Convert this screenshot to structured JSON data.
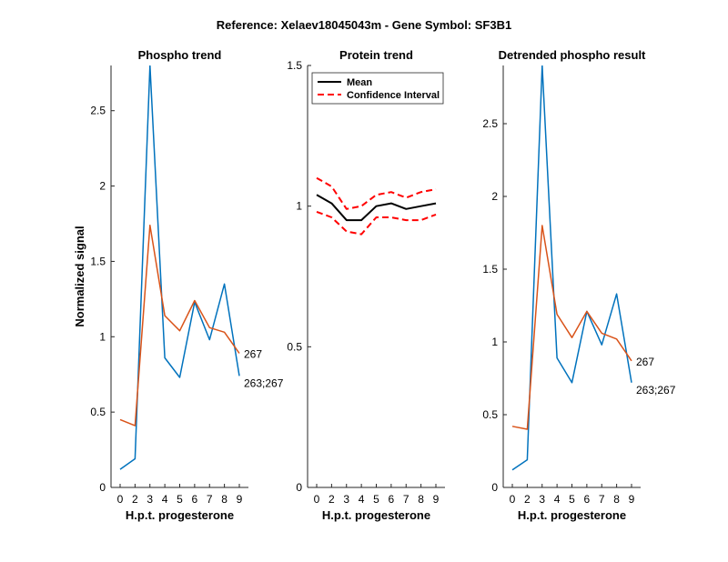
{
  "figure_title": "Reference:  Xelaev18045043m - Gene Symbol:  SF3B1",
  "colors": {
    "blue": "#0072BD",
    "orange": "#D95319",
    "black": "#000000",
    "red": "#FF0000"
  },
  "chart_data": [
    {
      "type": "line",
      "title": "Phospho trend",
      "xlabel": "H.p.t. progesterone",
      "ylabel": "Normalized signal",
      "x_ticks": [
        "0",
        "2",
        "3",
        "4",
        "5",
        "6",
        "7",
        "8",
        "9"
      ],
      "ylim": [
        0,
        2.8
      ],
      "y_ticks": [
        0,
        0.5,
        1,
        1.5,
        2,
        2.5
      ],
      "y_tick_labels": [
        "0",
        "0.5",
        "1",
        "1.5",
        "2",
        "2.5"
      ],
      "series": [
        {
          "name": "263;267",
          "color": "#0072BD",
          "dash": "none",
          "values": [
            0.12,
            0.19,
            2.8,
            0.86,
            0.73,
            1.23,
            0.98,
            1.35,
            0.74
          ]
        },
        {
          "name": "267",
          "color": "#D95319",
          "dash": "none",
          "values": [
            0.45,
            0.41,
            1.74,
            1.14,
            1.04,
            1.24,
            1.06,
            1.03,
            0.89
          ]
        }
      ]
    },
    {
      "type": "line",
      "title": "Protein trend",
      "xlabel": "H.p.t. progesterone",
      "ylabel": "",
      "x_ticks": [
        "0",
        "2",
        "3",
        "4",
        "5",
        "6",
        "7",
        "8",
        "9"
      ],
      "ylim": [
        0,
        1.5
      ],
      "y_ticks": [
        0,
        0.5,
        1,
        1.5
      ],
      "y_tick_labels": [
        "0",
        "0.5",
        "1",
        "1.5"
      ],
      "legend_position": "top-right",
      "legend": [
        {
          "label": "Mean",
          "color": "#000000",
          "dash": "none"
        },
        {
          "label": "Confidence Interval",
          "color": "#FF0000",
          "dash": "7,4"
        }
      ],
      "series": [
        {
          "name": "Mean",
          "color": "#000000",
          "dash": "none",
          "values": [
            1.04,
            1.01,
            0.95,
            0.95,
            1.0,
            1.01,
            0.99,
            1.0,
            1.01
          ]
        },
        {
          "name": "Confidence Interval",
          "color": "#FF0000",
          "dash": "7,4",
          "values": [
            1.1,
            1.07,
            0.99,
            1.0,
            1.04,
            1.05,
            1.03,
            1.05,
            1.06
          ]
        },
        {
          "name": "Confidence Interval",
          "color": "#FF0000",
          "dash": "7,4",
          "values": [
            0.98,
            0.96,
            0.91,
            0.9,
            0.96,
            0.96,
            0.95,
            0.95,
            0.97
          ]
        }
      ]
    },
    {
      "type": "line",
      "title": "Detrended phospho result",
      "xlabel": "H.p.t. progesterone",
      "ylabel": "",
      "x_ticks": [
        "0",
        "2",
        "3",
        "4",
        "5",
        "6",
        "7",
        "8",
        "9"
      ],
      "ylim": [
        0,
        2.9
      ],
      "y_ticks": [
        0,
        0.5,
        1,
        1.5,
        2,
        2.5
      ],
      "y_tick_labels": [
        "0",
        "0.5",
        "1",
        "1.5",
        "2",
        "2.5"
      ],
      "series": [
        {
          "name": "263;267",
          "color": "#0072BD",
          "dash": "none",
          "values": [
            0.12,
            0.19,
            2.9,
            0.89,
            0.72,
            1.21,
            0.98,
            1.33,
            0.72
          ]
        },
        {
          "name": "267",
          "color": "#D95319",
          "dash": "none",
          "values": [
            0.42,
            0.4,
            1.8,
            1.19,
            1.03,
            1.21,
            1.06,
            1.02,
            0.87
          ]
        }
      ]
    }
  ]
}
